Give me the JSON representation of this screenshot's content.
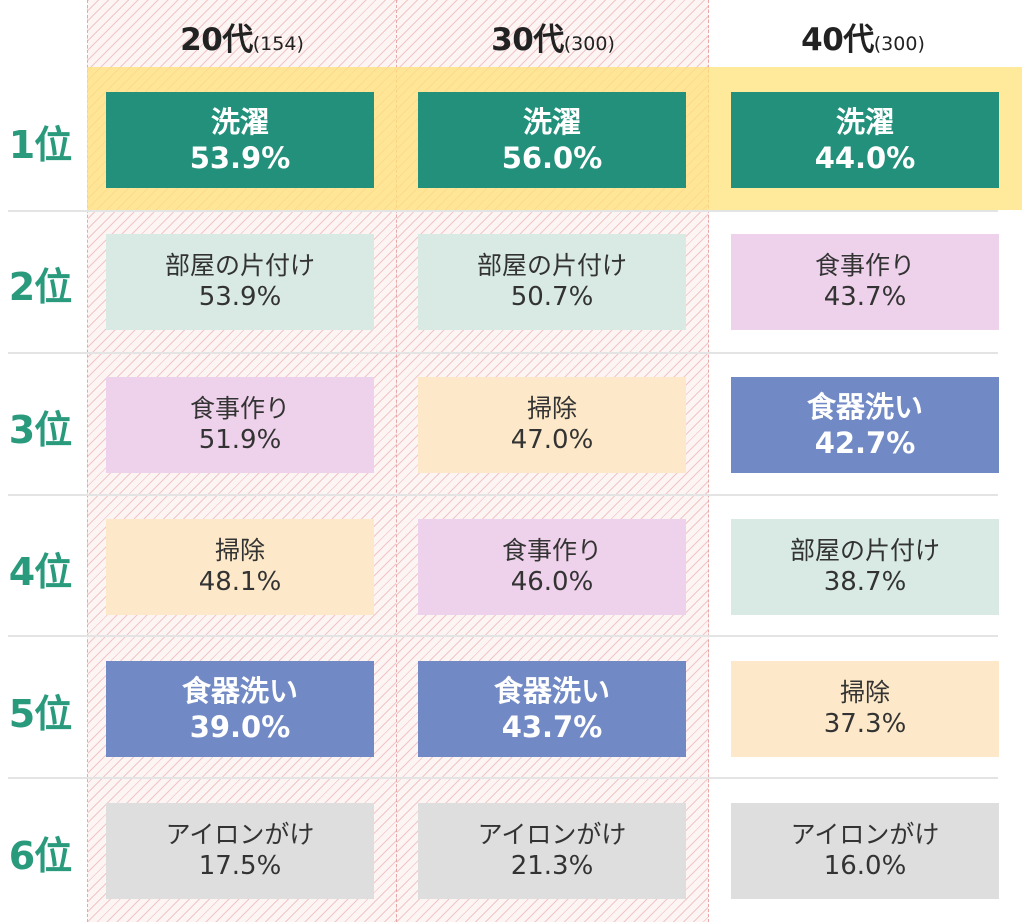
{
  "columns": [
    {
      "age": "20代",
      "count": "(154)"
    },
    {
      "age": "30代",
      "count": "(300)"
    },
    {
      "age": "40代",
      "count": "(300)"
    }
  ],
  "ranks": [
    "1位",
    "2位",
    "3位",
    "4位",
    "5位",
    "6位"
  ],
  "colors": {
    "洗濯": "#22907b",
    "部屋の片付け": "#d8eae3",
    "食事作り": "#eed1ea",
    "掃除": "#fde9c9",
    "食器洗い": "#7189c4",
    "アイロンがけ": "#dedede",
    "rank_text": "#2a9a7d",
    "highlight": "#ffe27a"
  },
  "chart_data": {
    "type": "table",
    "title": "",
    "row_labels": [
      "1位",
      "2位",
      "3位",
      "4位",
      "5位",
      "6位"
    ],
    "column_labels": [
      "20代(154)",
      "30代(300)",
      "40代(300)"
    ],
    "cells": [
      [
        {
          "label": "洗濯",
          "value": "53.9%"
        },
        {
          "label": "部屋の片付け",
          "value": "53.9%"
        },
        {
          "label": "食事作り",
          "value": "51.9%"
        },
        {
          "label": "掃除",
          "value": "48.1%"
        },
        {
          "label": "食器洗い",
          "value": "39.0%"
        },
        {
          "label": "アイロンがけ",
          "value": "17.5%"
        }
      ],
      [
        {
          "label": "洗濯",
          "value": "56.0%"
        },
        {
          "label": "部屋の片付け",
          "value": "50.7%"
        },
        {
          "label": "掃除",
          "value": "47.0%"
        },
        {
          "label": "食事作り",
          "value": "46.0%"
        },
        {
          "label": "食器洗い",
          "value": "43.7%"
        },
        {
          "label": "アイロンがけ",
          "value": "21.3%"
        }
      ],
      [
        {
          "label": "洗濯",
          "value": "44.0%"
        },
        {
          "label": "食事作り",
          "value": "43.7%"
        },
        {
          "label": "食器洗い",
          "value": "42.7%"
        },
        {
          "label": "部屋の片付け",
          "value": "38.7%"
        },
        {
          "label": "掃除",
          "value": "37.3%"
        },
        {
          "label": "アイロンがけ",
          "value": "16.0%"
        }
      ]
    ],
    "dark_labels": [
      "洗濯",
      "食器洗い"
    ]
  }
}
